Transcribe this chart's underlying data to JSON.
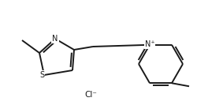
{
  "bg_color": "#ffffff",
  "line_color": "#1a1a1a",
  "line_width": 1.4,
  "font_size": 7.0,
  "cl_label": "Cl⁻",
  "n_plus_label": "N⁺",
  "figsize": [
    2.83,
    1.38
  ],
  "dpi": 100,
  "xlim": [
    0,
    283
  ],
  "ylim": [
    0,
    138
  ]
}
